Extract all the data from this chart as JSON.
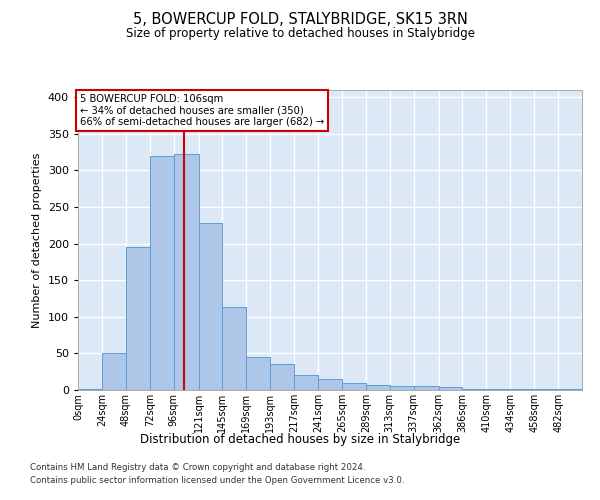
{
  "title": "5, BOWERCUP FOLD, STALYBRIDGE, SK15 3RN",
  "subtitle": "Size of property relative to detached houses in Stalybridge",
  "xlabel": "Distribution of detached houses by size in Stalybridge",
  "ylabel": "Number of detached properties",
  "annotation_title": "5 BOWERCUP FOLD: 106sqm",
  "annotation_line1": "← 34% of detached houses are smaller (350)",
  "annotation_line2": "66% of semi-detached houses are larger (682) →",
  "property_size_sqm": 106,
  "categories": [
    "0sqm",
    "24sqm",
    "48sqm",
    "72sqm",
    "96sqm",
    "121sqm",
    "145sqm",
    "169sqm",
    "193sqm",
    "217sqm",
    "241sqm",
    "265sqm",
    "289sqm",
    "313sqm",
    "337sqm",
    "362sqm",
    "386sqm",
    "410sqm",
    "434sqm",
    "458sqm",
    "482sqm"
  ],
  "bin_edges": [
    0,
    24,
    48,
    72,
    96,
    121,
    145,
    169,
    193,
    217,
    241,
    265,
    289,
    313,
    337,
    362,
    386,
    410,
    434,
    458,
    482,
    506
  ],
  "values": [
    2,
    50,
    195,
    320,
    322,
    228,
    113,
    45,
    35,
    20,
    15,
    10,
    7,
    5,
    5,
    4,
    2,
    2,
    1,
    1,
    2
  ],
  "bar_color": "#aec6e8",
  "bar_edge_color": "#5a9fd4",
  "vline_color": "#cc0000",
  "vline_x": 106,
  "annotation_box_color": "#cc0000",
  "background_color": "#dce8f5",
  "grid_color": "#ffffff",
  "fig_background": "#ffffff",
  "ylim": [
    0,
    410
  ],
  "yticks": [
    0,
    50,
    100,
    150,
    200,
    250,
    300,
    350,
    400
  ],
  "footer_line1": "Contains HM Land Registry data © Crown copyright and database right 2024.",
  "footer_line2": "Contains public sector information licensed under the Open Government Licence v3.0."
}
